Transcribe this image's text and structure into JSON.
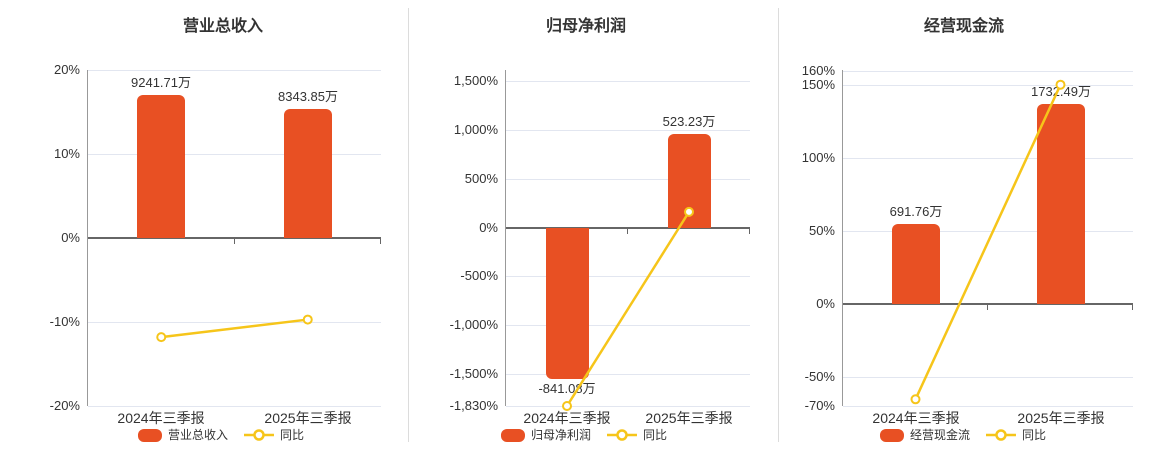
{
  "page": {
    "background": "#ffffff"
  },
  "colors": {
    "bar": "#e85023",
    "line": "#f6c51a",
    "marker_fill": "#ffffff",
    "grid": "#e2e6f0",
    "zero_axis": "#666666",
    "y_axis": "#999999",
    "text": "#333333",
    "divider": "#dcdcdc"
  },
  "chart_data": [
    {
      "id": "revenue",
      "type": "bar",
      "title": "营业总收入",
      "categories": [
        "2024年三季报",
        "2025年三季报"
      ],
      "bar": {
        "name": "营业总收入",
        "unit": "万",
        "values": [
          9241.71,
          8343.85
        ],
        "labels": [
          "9241.71万",
          "8343.85万"
        ],
        "display_on_pct_axis": [
          17.0,
          15.35
        ]
      },
      "line": {
        "name": "同比",
        "values_pct": [
          -11.8,
          -9.71
        ]
      },
      "ytick_labels": [
        "20%",
        "10%",
        "0%",
        "-10%",
        "-20%"
      ],
      "ytick_values": [
        20,
        10,
        0,
        -10,
        -20
      ],
      "ylim": [
        -20,
        20
      ],
      "grid": true,
      "legend_position": "bottom"
    },
    {
      "id": "net-profit",
      "type": "bar",
      "title": "归母净利润",
      "categories": [
        "2024年三季报",
        "2025年三季报"
      ],
      "bar": {
        "name": "归母净利润",
        "unit": "万",
        "values": [
          -841.08,
          523.23
        ],
        "labels": [
          "-841.08万",
          "523.23万"
        ],
        "display_on_pct_axis": [
          -1545,
          961
        ]
      },
      "line": {
        "name": "同比",
        "values_pct": [
          -1830,
          162.2
        ]
      },
      "ytick_labels": [
        "1,500%",
        "1,000%",
        "500%",
        "0%",
        "-500%",
        "-1,000%",
        "-1,500%",
        "-1,830%"
      ],
      "ytick_values": [
        1500,
        1000,
        500,
        0,
        -500,
        -1000,
        -1500,
        -1830
      ],
      "ylim": [
        -1830,
        1618
      ],
      "grid": true,
      "legend_position": "bottom"
    },
    {
      "id": "operating-cash-flow",
      "type": "bar",
      "title": "经营现金流",
      "categories": [
        "2024年三季报",
        "2025年三季报"
      ],
      "bar": {
        "name": "经营现金流",
        "unit": "万",
        "values": [
          691.76,
          1732.49
        ],
        "labels": [
          "691.76万",
          "1732.49万"
        ],
        "display_on_pct_axis": [
          54.9,
          137.5
        ]
      },
      "line": {
        "name": "同比",
        "values_pct": [
          -65.4,
          150.4
        ]
      },
      "ytick_labels": [
        "160%",
        "150%",
        "100%",
        "50%",
        "0%",
        "-50%",
        "-70%"
      ],
      "ytick_values": [
        160,
        150,
        100,
        50,
        0,
        -50,
        -70
      ],
      "ylim": [
        -70,
        160.5
      ],
      "grid": true,
      "legend_position": "bottom"
    }
  ]
}
